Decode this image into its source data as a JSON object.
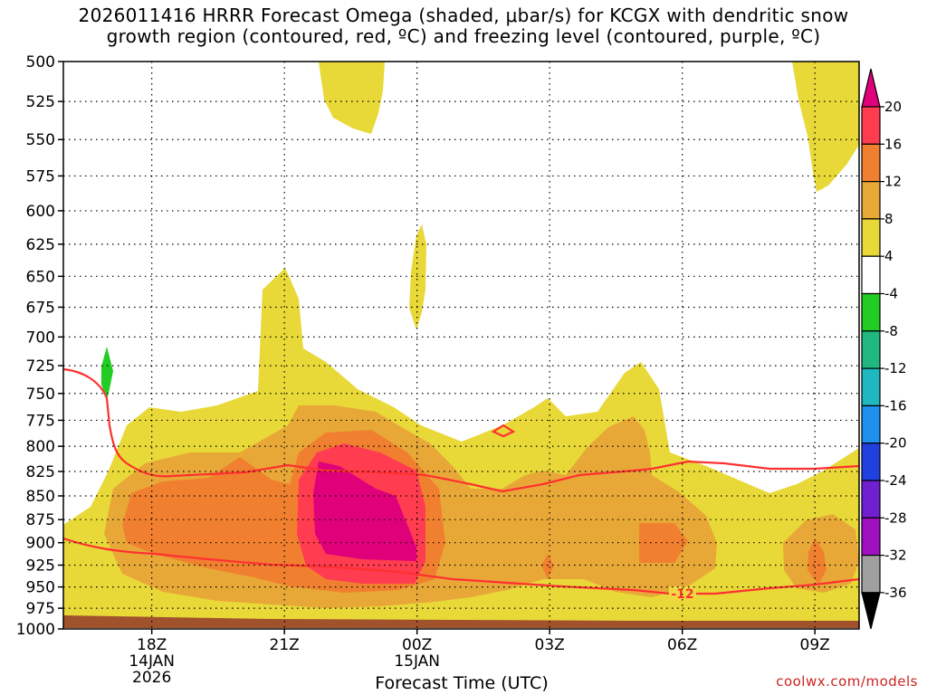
{
  "title_line1": "2026011416 HRRR Forecast Omega (shaded, μbar/s) for KCGX with dendritic snow",
  "title_line2": "growth region (contoured, red, ºC) and freezing level (contoured, purple, ºC)",
  "credit": "coolwx.com/models",
  "chart_data": {
    "type": "time-height cross-section (filled contour)",
    "xlabel": "Forecast Time (UTC)",
    "x_ticks": [
      {
        "label": "18Z",
        "sub1": "14JAN",
        "sub2": "2026",
        "hour": 2
      },
      {
        "label": "21Z",
        "sub1": "",
        "sub2": "",
        "hour": 5
      },
      {
        "label": "00Z",
        "sub1": "15JAN",
        "sub2": "",
        "hour": 8
      },
      {
        "label": "03Z",
        "sub1": "",
        "sub2": "",
        "hour": 11
      },
      {
        "label": "06Z",
        "sub1": "",
        "sub2": "",
        "hour": 14
      },
      {
        "label": "09Z",
        "sub1": "",
        "sub2": "",
        "hour": 17
      }
    ],
    "xlim": [
      0,
      18
    ],
    "ylabel": "",
    "y_ticks": [
      500,
      525,
      550,
      575,
      600,
      625,
      650,
      675,
      700,
      725,
      750,
      775,
      800,
      825,
      850,
      875,
      900,
      925,
      950,
      975,
      1000
    ],
    "ylim": [
      500,
      1000
    ],
    "y_axis": "pressure (hPa), log scale, reversed",
    "grid": true,
    "colorbar": {
      "labels": [
        "20",
        "16",
        "12",
        "8",
        "4",
        "-4",
        "-8",
        "-12",
        "-16",
        "-20",
        "-24",
        "-28",
        "-32",
        "-36"
      ],
      "colors": [
        "#ff3c50",
        "#f08030",
        "#e8a838",
        "#e8d838",
        "#ffffff",
        "#22cc22",
        "#20b880",
        "#20b8c0",
        "#2090ee",
        "#2040e0",
        "#7020d0",
        "#a010c0",
        "#a0a0a0"
      ],
      "top_color": "#e0007a",
      "bottom_color": "#000000"
    },
    "contour_annotations": [
      {
        "label": "-12",
        "hour": 13.9,
        "pressure": 955
      }
    ],
    "omega_levels": [
      {
        "level": "4 to 8",
        "color": "#e8d838"
      },
      {
        "level": "8 to 12",
        "color": "#e8a838"
      },
      {
        "level": "12 to 16",
        "color": "#f08030"
      },
      {
        "level": "16 to 20",
        "color": "#ff3c50"
      },
      {
        "level": ">20",
        "color": "#e0007a"
      },
      {
        "level": "-4 to -8",
        "color": "#22cc22"
      }
    ],
    "ground_color": "#a0522d"
  }
}
